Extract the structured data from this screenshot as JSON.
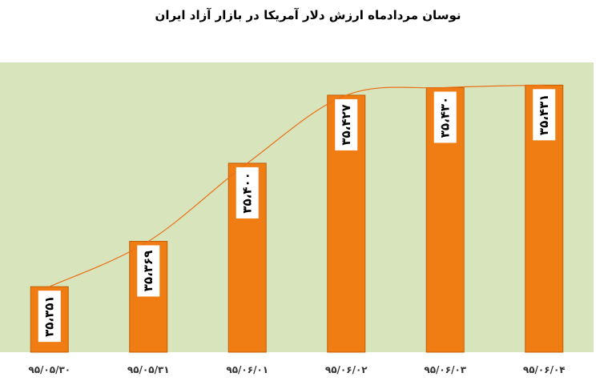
{
  "chart_data": {
    "type": "bar",
    "title": "نوسان مردادماه ارزش  دلار آمریکا در بازار آزاد ایران",
    "categories": [
      "۹۵/۰۵/۳۰",
      "۹۵/۰۵/۳۱",
      "۹۵/۰۶/۰۱",
      "۹۵/۰۶/۰۲",
      "۹۵/۰۶/۰۳",
      "۹۵/۰۶/۰۴"
    ],
    "values": [
      35351,
      35369,
      35400,
      35427,
      35430,
      35431
    ],
    "data_labels": [
      "۳۵،۳۵۱",
      "۳۵،۳۶۹",
      "۳۵،۴۰۰",
      "۳۵،۴۲۷",
      "۳۵،۴۳۰",
      "۳۵،۴۳۱"
    ],
    "ylim": [
      35325,
      35440
    ],
    "trendline": true,
    "grid": false,
    "legend": "none",
    "colors": {
      "bar_fill": "#F07C14",
      "bar_edge": "#C25F05",
      "plot_bg": "#D8E4BC",
      "trend_line": "#E8711A",
      "label_bg": "#FFFFFF"
    }
  }
}
